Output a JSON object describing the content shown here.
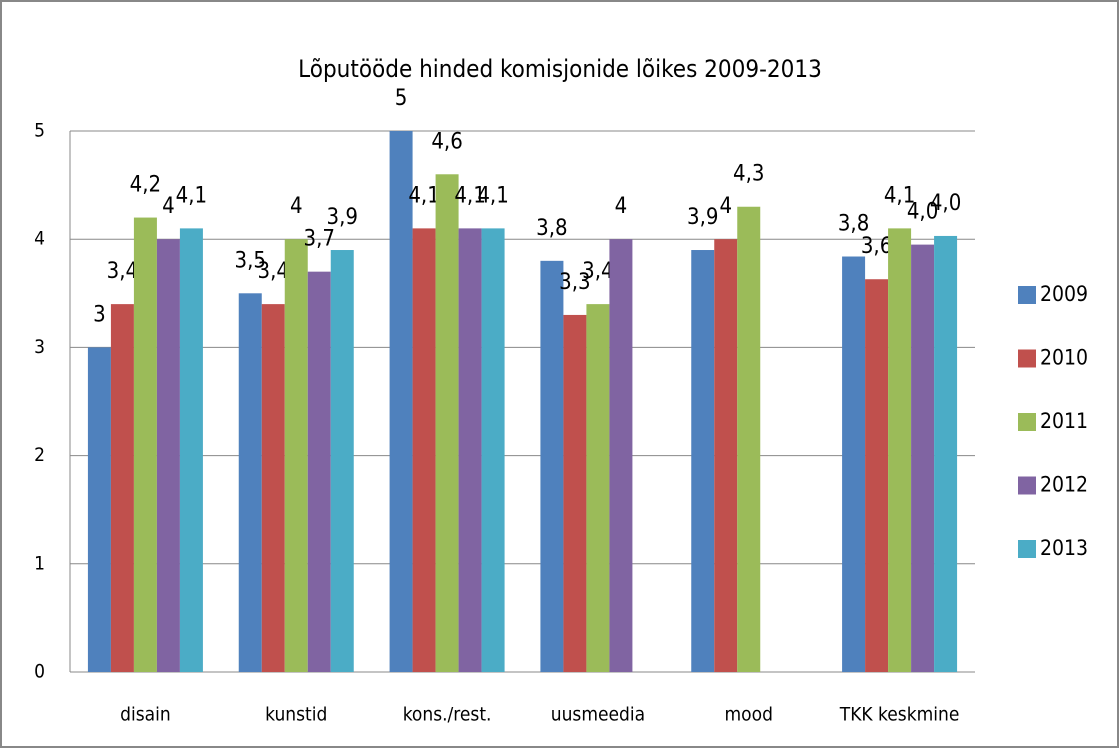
{
  "chart_data": {
    "type": "bar",
    "title": "Lõputööde hinded komisjonide lõikes 2009-2013",
    "categories": [
      "disain",
      "kunstid",
      "kons./rest.",
      "uusmeedia",
      "mood",
      "TKK keskmine"
    ],
    "series": [
      {
        "name": "2009",
        "color": "#4f81bd",
        "values": [
          3,
          3.5,
          5,
          3.8,
          3.9,
          3.84
        ],
        "value_labels": [
          "3",
          "3,5",
          "5",
          "3,8",
          "3,9",
          "3,8"
        ]
      },
      {
        "name": "2010",
        "color": "#c0504d",
        "values": [
          3.4,
          3.4,
          4.1,
          3.3,
          4,
          3.63
        ],
        "value_labels": [
          "3,4",
          "3,4",
          "4,1",
          "3,3",
          "4",
          "3,6"
        ]
      },
      {
        "name": "2011",
        "color": "#9bbb59",
        "values": [
          4.2,
          4,
          4.6,
          3.4,
          4.3,
          4.1
        ],
        "value_labels": [
          "4,2",
          "4",
          "4,6",
          "3,4",
          "4,3",
          "4,1"
        ]
      },
      {
        "name": "2012",
        "color": "#8064a2",
        "values": [
          4,
          3.7,
          4.1,
          4,
          null,
          3.95
        ],
        "value_labels": [
          "4",
          "3,7",
          "4,1",
          "4",
          null,
          "4,0"
        ]
      },
      {
        "name": "2013",
        "color": "#4bacc6",
        "values": [
          4.1,
          3.9,
          4.1,
          null,
          null,
          4.03
        ],
        "value_labels": [
          "4,1",
          "3,9",
          "4,1",
          null,
          null,
          "4,0"
        ]
      }
    ],
    "ylim": [
      0,
      5
    ],
    "yticks": [
      0,
      1,
      2,
      3,
      4,
      5
    ],
    "grid": true,
    "legend": "right"
  }
}
